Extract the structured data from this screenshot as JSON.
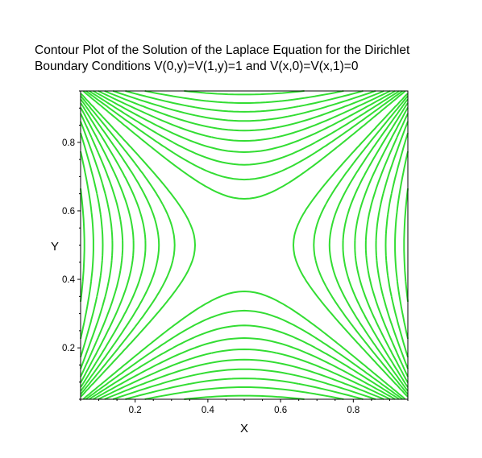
{
  "chart_data": {
    "type": "contour",
    "title_lines": [
      "Contour Plot of the Solution of the Laplace Equation for the Dirichlet",
      "Boundary Conditions V(0,y)=V(1,y)=1 and V(x,0)=V(x,1)=0"
    ],
    "xlabel": "X",
    "ylabel": "Y",
    "xlim": [
      0.05,
      0.95
    ],
    "ylim": [
      0.05,
      0.95
    ],
    "x_ticks": [
      0.2,
      0.4,
      0.6,
      0.8
    ],
    "y_ticks": [
      0.2,
      0.4,
      0.6,
      0.8
    ],
    "x_tick_labels": [
      "0.2",
      "0.4",
      "0.6",
      "0.8"
    ],
    "y_tick_labels": [
      "0.2",
      "0.4",
      "0.6",
      "0.8"
    ],
    "line_color": "#33dd33",
    "grid": false,
    "contour_levels": [
      0.02,
      0.06,
      0.1,
      0.14,
      0.18,
      0.22,
      0.26,
      0.3,
      0.34,
      0.38,
      0.42,
      0.46,
      0.54,
      0.58,
      0.62,
      0.66,
      0.7,
      0.74,
      0.78,
      0.82,
      0.86,
      0.9,
      0.94,
      0.98
    ]
  }
}
